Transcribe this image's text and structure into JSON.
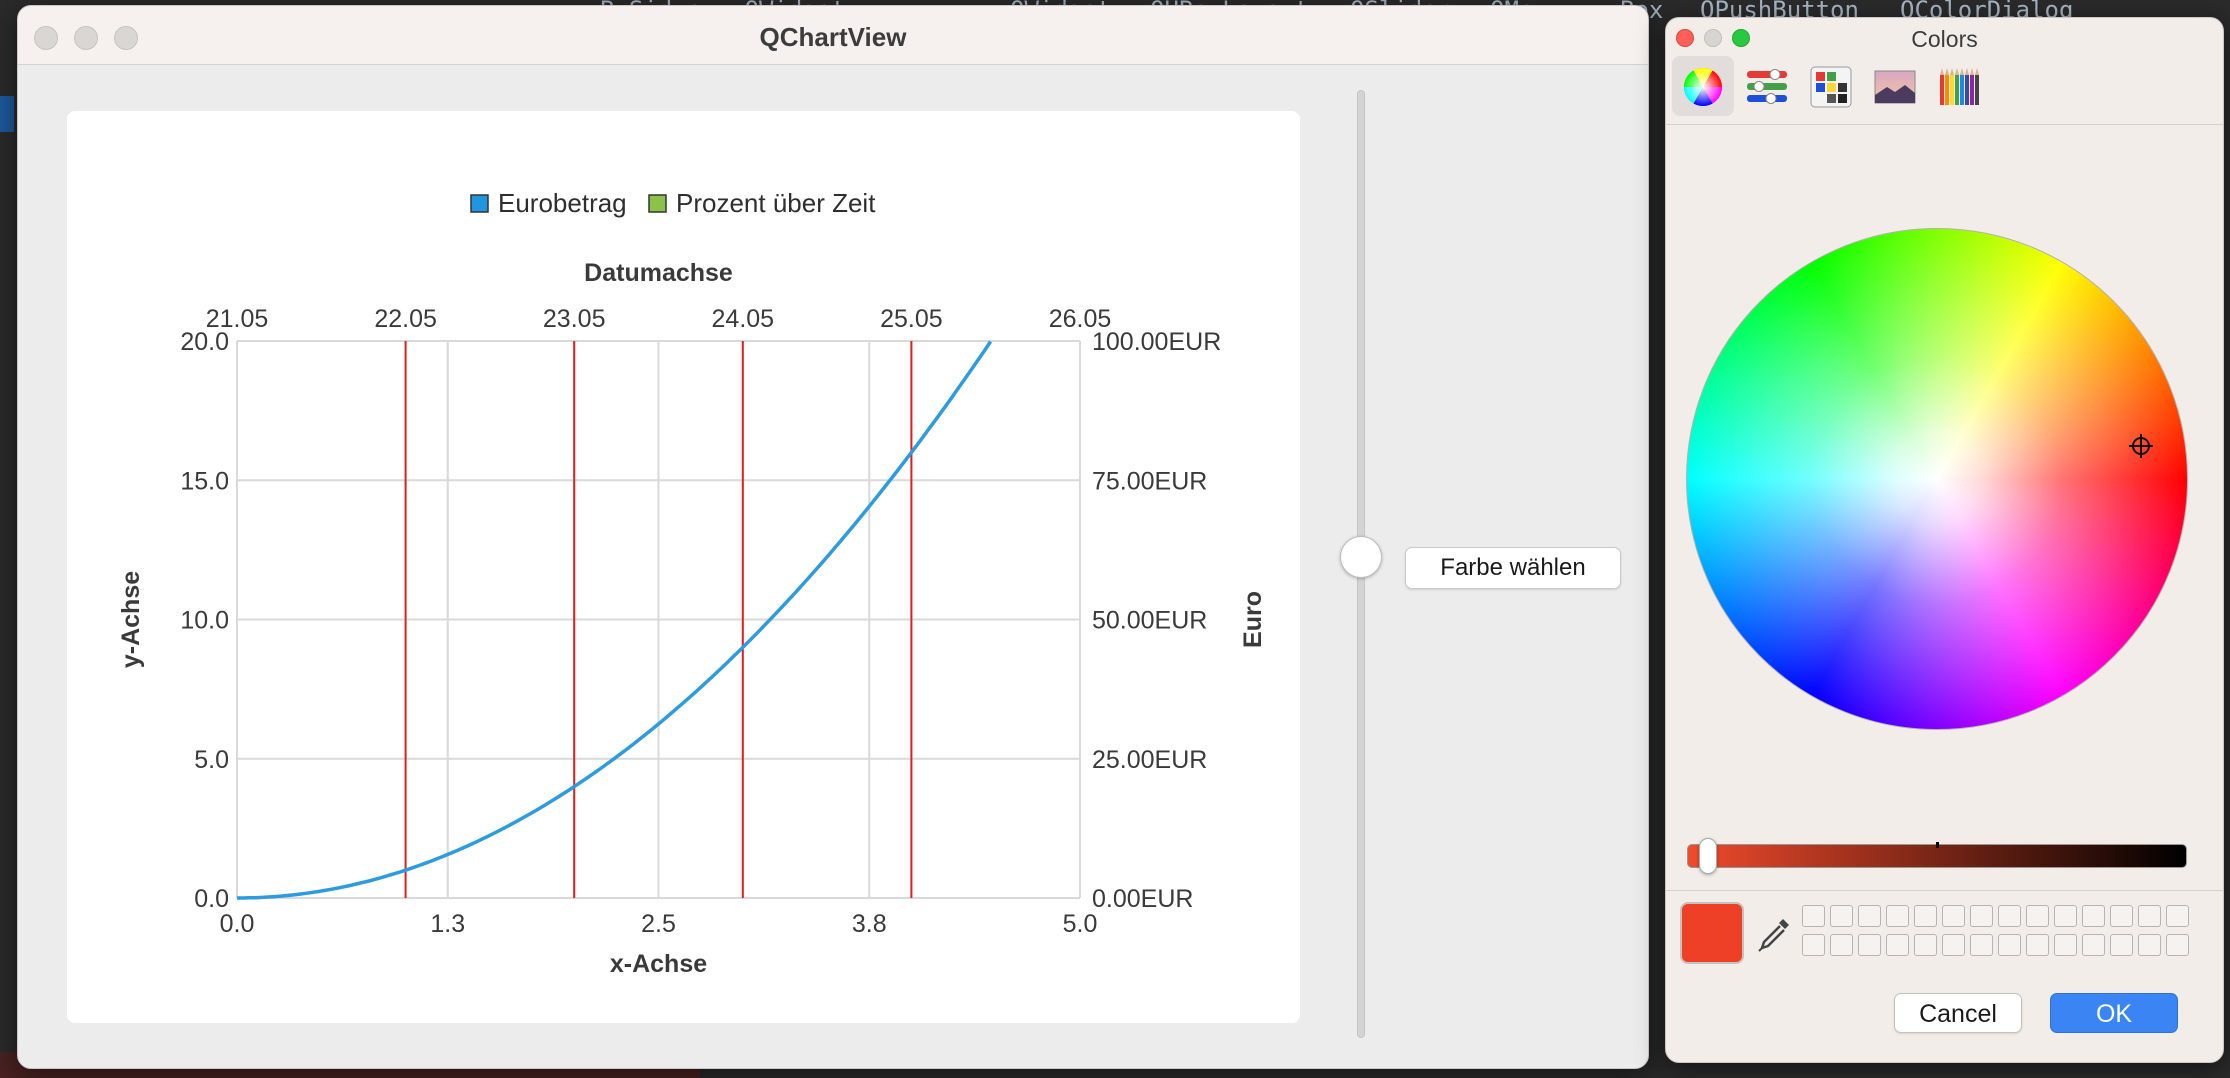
{
  "background": {
    "code_fragments": [
      "B Sid.e...QWidget",
      "OWidget",
      "QHBoxLayout",
      "QSlider",
      "QMe...",
      "Box",
      "QPushButton",
      "QColorDialog"
    ]
  },
  "main_window": {
    "title": "QChartView",
    "color_button_label": "Farbe wählen",
    "slider_value": 0.5
  },
  "chart_data": {
    "type": "line",
    "legend": [
      "Eurobetrag",
      "Prozent über Zeit"
    ],
    "legend_colors": [
      "#2196e0",
      "#8bc34a"
    ],
    "legend_position": "top",
    "series": [
      {
        "name": "Eurobetrag",
        "color": "#2d9be0",
        "x": [
          0,
          0.5,
          1,
          1.5,
          2,
          2.5,
          3,
          3.5,
          4,
          4.47
        ],
        "y": [
          0,
          0.25,
          1,
          2.25,
          4,
          6.25,
          9,
          12.25,
          16,
          20
        ]
      }
    ],
    "vertical_markers_x": [
      1,
      2,
      3,
      4
    ],
    "vertical_marker_color": "#e02020",
    "x_axis": {
      "title": "x-Achse",
      "range": [
        0,
        5
      ],
      "ticks": [
        "0.0",
        "1.3",
        "2.5",
        "3.8",
        "5.0"
      ]
    },
    "y_axis": {
      "title": "y-Achse",
      "range": [
        0,
        20
      ],
      "ticks": [
        "0.0",
        "5.0",
        "10.0",
        "15.0",
        "20.0"
      ]
    },
    "y2_axis": {
      "title": "Euro",
      "range": [
        0,
        100
      ],
      "ticks": [
        "0.00EUR",
        "25.00EUR",
        "50.00EUR",
        "75.00EUR",
        "100.00EUR"
      ]
    },
    "date_axis": {
      "title": "Datumachse",
      "ticks": [
        "21.05",
        "22.05",
        "23.05",
        "24.05",
        "25.05",
        "26.05"
      ]
    },
    "grid": true
  },
  "colors_dialog": {
    "title": "Colors",
    "tabs": [
      "color-wheel",
      "color-sliders",
      "color-palettes",
      "image-palettes",
      "pencils"
    ],
    "active_tab": "color-wheel",
    "selected_color": "#ee4026",
    "cancel_label": "Cancel",
    "ok_label": "OK"
  }
}
